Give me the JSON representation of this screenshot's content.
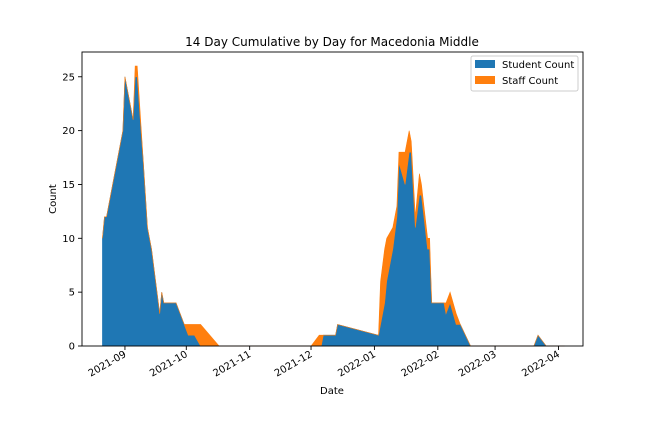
{
  "chart_data": {
    "type": "area",
    "stacked": true,
    "title": "14 Day Cumulative by Day for Macedonia Middle",
    "xlabel": "Date",
    "ylabel": "Count",
    "xlim": [
      "2021-08-11",
      "2022-04-13"
    ],
    "ylim": [
      0,
      27.3
    ],
    "yticks": [
      0,
      5,
      10,
      15,
      20,
      25
    ],
    "xticks": [
      "2021-09-01",
      "2021-10-01",
      "2021-11-01",
      "2021-12-01",
      "2022-01-01",
      "2022-02-01",
      "2022-03-01",
      "2022-04-01"
    ],
    "xtick_labels": [
      "2021-09",
      "2021-10",
      "2021-11",
      "2021-12",
      "2022-01",
      "2022-02",
      "2022-03",
      "2022-04"
    ],
    "grid": false,
    "legend_position": "top-right",
    "series": [
      {
        "name": "Student Count",
        "color": "#1f77b4",
        "points": [
          [
            "2021-08-21",
            10
          ],
          [
            "2021-08-22",
            12
          ],
          [
            "2021-08-23",
            12
          ],
          [
            "2021-08-25",
            14
          ],
          [
            "2021-08-30",
            19
          ],
          [
            "2021-08-31",
            20
          ],
          [
            "2021-09-01",
            25
          ],
          [
            "2021-09-02",
            24
          ],
          [
            "2021-09-05",
            21
          ],
          [
            "2021-09-06",
            25
          ],
          [
            "2021-09-07",
            25
          ],
          [
            "2021-09-10",
            17
          ],
          [
            "2021-09-12",
            11
          ],
          [
            "2021-09-13",
            10
          ],
          [
            "2021-09-14",
            9
          ],
          [
            "2021-09-16",
            6
          ],
          [
            "2021-09-18",
            3
          ],
          [
            "2021-09-19",
            5
          ],
          [
            "2021-09-20",
            4
          ],
          [
            "2021-09-26",
            4
          ],
          [
            "2021-09-28",
            3
          ],
          [
            "2021-09-30",
            2
          ],
          [
            "2021-10-02",
            1
          ],
          [
            "2021-10-05",
            1
          ],
          [
            "2021-10-08",
            0
          ],
          [
            "2021-10-17",
            0
          ],
          [
            "2021-11-20",
            0
          ],
          [
            "2021-12-01",
            0
          ],
          [
            "2021-12-05",
            0
          ],
          [
            "2021-12-06",
            0
          ],
          [
            "2021-12-07",
            1
          ],
          [
            "2021-12-13",
            1
          ],
          [
            "2021-12-14",
            2
          ],
          [
            "2022-01-03",
            1
          ],
          [
            "2022-01-04",
            2
          ],
          [
            "2022-01-06",
            4
          ],
          [
            "2022-01-07",
            6
          ],
          [
            "2022-01-10",
            9
          ],
          [
            "2022-01-12",
            12
          ],
          [
            "2022-01-13",
            17
          ],
          [
            "2022-01-16",
            15
          ],
          [
            "2022-01-18",
            18
          ],
          [
            "2022-01-19",
            18
          ],
          [
            "2022-01-21",
            11
          ],
          [
            "2022-01-23",
            14
          ],
          [
            "2022-01-24",
            14
          ],
          [
            "2022-01-27",
            9
          ],
          [
            "2022-01-28",
            9
          ],
          [
            "2022-01-29",
            4
          ],
          [
            "2022-02-04",
            4
          ],
          [
            "2022-02-05",
            3
          ],
          [
            "2022-02-07",
            4
          ],
          [
            "2022-02-10",
            2
          ],
          [
            "2022-02-12",
            2
          ],
          [
            "2022-02-17",
            0
          ],
          [
            "2022-02-20",
            0
          ],
          [
            "2022-03-01",
            0
          ],
          [
            "2022-03-20",
            0
          ],
          [
            "2022-03-22",
            1
          ],
          [
            "2022-03-26",
            0
          ],
          [
            "2022-04-04",
            0
          ]
        ]
      },
      {
        "name": "Staff Count",
        "color": "#ff7f0e",
        "points": [
          [
            "2021-08-21",
            0
          ],
          [
            "2021-08-22",
            0
          ],
          [
            "2021-08-23",
            0
          ],
          [
            "2021-08-25",
            0
          ],
          [
            "2021-08-30",
            0
          ],
          [
            "2021-08-31",
            0
          ],
          [
            "2021-09-01",
            0
          ],
          [
            "2021-09-02",
            0
          ],
          [
            "2021-09-05",
            0
          ],
          [
            "2021-09-06",
            1
          ],
          [
            "2021-09-07",
            1
          ],
          [
            "2021-09-10",
            0
          ],
          [
            "2021-09-12",
            0
          ],
          [
            "2021-09-13",
            0
          ],
          [
            "2021-09-14",
            0
          ],
          [
            "2021-09-16",
            0
          ],
          [
            "2021-09-18",
            0
          ],
          [
            "2021-09-19",
            0
          ],
          [
            "2021-09-20",
            0
          ],
          [
            "2021-09-26",
            0
          ],
          [
            "2021-09-28",
            0
          ],
          [
            "2021-09-30",
            0
          ],
          [
            "2021-10-02",
            1
          ],
          [
            "2021-10-05",
            1
          ],
          [
            "2021-10-08",
            2
          ],
          [
            "2021-10-17",
            0
          ],
          [
            "2021-11-20",
            0
          ],
          [
            "2021-12-01",
            0
          ],
          [
            "2021-12-05",
            1
          ],
          [
            "2021-12-06",
            1
          ],
          [
            "2021-12-07",
            0
          ],
          [
            "2021-12-13",
            0
          ],
          [
            "2021-12-14",
            0
          ],
          [
            "2022-01-03",
            0
          ],
          [
            "2022-01-04",
            4
          ],
          [
            "2022-01-06",
            5
          ],
          [
            "2022-01-07",
            4
          ],
          [
            "2022-01-10",
            2
          ],
          [
            "2022-01-12",
            1
          ],
          [
            "2022-01-13",
            1
          ],
          [
            "2022-01-16",
            3
          ],
          [
            "2022-01-18",
            2
          ],
          [
            "2022-01-19",
            1
          ],
          [
            "2022-01-21",
            1
          ],
          [
            "2022-01-23",
            2
          ],
          [
            "2022-01-24",
            1
          ],
          [
            "2022-01-27",
            1
          ],
          [
            "2022-01-28",
            1
          ],
          [
            "2022-01-29",
            0
          ],
          [
            "2022-02-04",
            0
          ],
          [
            "2022-02-05",
            1
          ],
          [
            "2022-02-07",
            1
          ],
          [
            "2022-02-10",
            1
          ],
          [
            "2022-02-12",
            0
          ],
          [
            "2022-02-17",
            0
          ],
          [
            "2022-02-20",
            0
          ],
          [
            "2022-03-01",
            0
          ],
          [
            "2022-03-20",
            0
          ],
          [
            "2022-03-22",
            0
          ],
          [
            "2022-03-26",
            0
          ],
          [
            "2022-04-04",
            0
          ]
        ]
      }
    ]
  }
}
